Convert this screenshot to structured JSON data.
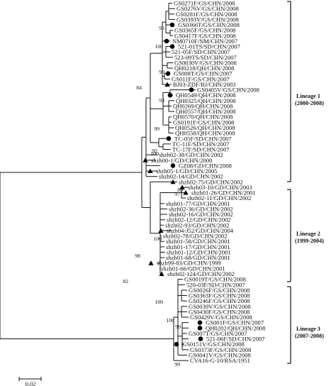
{
  "taxa": [
    {
      "label": "GS0271F/GS/CHN/2008",
      "marker": "none"
    },
    {
      "label": "GS0276V/GS/CHN/2008",
      "marker": "none"
    },
    {
      "label": "GS0281F/GS/CHN/2008",
      "marker": "none"
    },
    {
      "label": "GS0393V/GS/CHN/2008",
      "marker": "none"
    },
    {
      "label": "GS0366T/GS/CHN/2008",
      "marker": "circle"
    },
    {
      "label": "GS0365F/GS/CHN/2008",
      "marker": "none"
    },
    {
      "label": "GS0417F/GS/CHN/2008",
      "marker": "none"
    },
    {
      "label": "NM0710F/NM/CHN/2007",
      "marker": "circle"
    },
    {
      "label": "521-01TS/SD/CHN/2007",
      "marker": "circle"
    },
    {
      "label": "521-05F/SD/CHN/2007",
      "marker": "none"
    },
    {
      "label": "523-09TS/SD/CHN/2007",
      "marker": "none"
    },
    {
      "label": "GS0030V/GS/CHN/2008",
      "marker": "none"
    },
    {
      "label": "QH0218/QH/CHN/2008",
      "marker": "none"
    },
    {
      "label": "GS008T/GS/CHN/2007",
      "marker": "circle"
    },
    {
      "label": "GS011F/GS/CHN/2007",
      "marker": "none"
    },
    {
      "label": "BJ03-ZDF/BJ/CHN/2003",
      "marker": "triangle"
    },
    {
      "label": "GS0405V/GS/CHN/2008",
      "marker": "circle"
    },
    {
      "label": "QH0549/QH/CHN/2008",
      "marker": "circle"
    },
    {
      "label": "QH0325/QH/CHN/2008",
      "marker": "none"
    },
    {
      "label": "QH0269/QH/CHN/2008",
      "marker": "none"
    },
    {
      "label": "QH0557/QH/CHN/2008",
      "marker": "none"
    },
    {
      "label": "QH0570/QH/CHN/2008",
      "marker": "none"
    },
    {
      "label": "GS0191F/GS/CHN/2008",
      "marker": "none"
    },
    {
      "label": "QH0526/QH/CHN/2008",
      "marker": "none"
    },
    {
      "label": "QH0558/QH/CHN/2008",
      "marker": "none"
    },
    {
      "label": "TC-05F/SD/CHN/2007",
      "marker": "circle"
    },
    {
      "label": "TC-11F/SD/CHN/2007",
      "marker": "none"
    },
    {
      "label": "TC-17F/SD/CHN/2007",
      "marker": "none"
    },
    {
      "label": "shzh02-38/GD/CHN/2002",
      "marker": "none"
    },
    {
      "label": "shzh00-1/GD/CHN/2000",
      "marker": "triangle"
    },
    {
      "label": "GZ08/GD/CHN/2008",
      "marker": "circle"
    },
    {
      "label": "shzh05-1/GD/CHN/2005",
      "marker": "triangle"
    },
    {
      "label": "shzh02-14/GD/CHN/2002",
      "marker": "none"
    },
    {
      "label": "shzh02-75/GD/CHN/2002",
      "marker": "triangle"
    },
    {
      "label": "shzh03-10/GD/CHN/2003",
      "marker": "triangle"
    },
    {
      "label": "shzh01-26/GD/CHN/2001",
      "marker": "triangle"
    },
    {
      "label": "shzh02-11/GD/CHN/2002",
      "marker": "none"
    },
    {
      "label": "shzh01-77/GD/CHN/2001",
      "marker": "none"
    },
    {
      "label": "shzh02-36/GD/CHN/2002",
      "marker": "none"
    },
    {
      "label": "shzh02-16/GD/CHN/2002",
      "marker": "none"
    },
    {
      "label": "shzh02-12/GD/CHN/2002",
      "marker": "none"
    },
    {
      "label": "shzh02-93/GD/CHN/2002",
      "marker": "none"
    },
    {
      "label": "shzh04-J52/GD/CHN/2004",
      "marker": "triangle"
    },
    {
      "label": "shzh02-78/GD/CHN/2002",
      "marker": "none"
    },
    {
      "label": "shzh01-58/GD/CHN/2001",
      "marker": "none"
    },
    {
      "label": "shzh01-17/GD/CHN/2001",
      "marker": "none"
    },
    {
      "label": "shzh01-12/GD/CHN/2001",
      "marker": "none"
    },
    {
      "label": "shzh01-68/GD/CHN/2001",
      "marker": "none"
    },
    {
      "label": "shzh99-83/GD/CHN/1999",
      "marker": "triangle"
    },
    {
      "label": "shzh01-66/GD/CHN/2001",
      "marker": "none"
    },
    {
      "label": "shzh02-124/GD/CHN/2002",
      "marker": "triangle"
    },
    {
      "label": "GS0019T/GS/CHN/2008",
      "marker": "none"
    },
    {
      "label": "520-03F/SD/CHN/2007",
      "marker": "none"
    },
    {
      "label": "GS0026F/GS/CHN/2008",
      "marker": "none"
    },
    {
      "label": "GS0363F/GS/CHN/2008",
      "marker": "none"
    },
    {
      "label": "GS0246F/GS/CHN/2008",
      "marker": "none"
    },
    {
      "label": "GS0039V/GS/CHN/2008",
      "marker": "none"
    },
    {
      "label": "GS0430F/GS/CHN/2008",
      "marker": "none"
    },
    {
      "label": "GS0429V/GS/CHN/2008",
      "marker": "none"
    },
    {
      "label": "GS001F/GS/CHN/2007",
      "marker": "circle"
    },
    {
      "label": "QH0202/QH/CHN/2008",
      "marker": "circle"
    },
    {
      "label": "GS007T/GS/CHN/2007",
      "marker": "none"
    },
    {
      "label": "521-06F/SD/CHN/2007",
      "marker": "circle"
    },
    {
      "label": "GS0151V/GS/CHN/2008",
      "marker": "circle"
    },
    {
      "label": "GS0373F/GS/CHN/2008",
      "marker": "none"
    },
    {
      "label": "GS0041V/GS/CHN/2008",
      "marker": "none"
    },
    {
      "label": "CVA16-G-10/RSA/1951",
      "marker": "none"
    }
  ],
  "bootstrap": [
    "95",
    "100",
    "99",
    "84",
    "93",
    "99",
    "100",
    "92",
    "89",
    "97",
    "100",
    "98",
    "82",
    "100",
    "100",
    "99",
    "99"
  ],
  "lineages": [
    {
      "name": "Lineage 1",
      "period": "(2000-2008)"
    },
    {
      "name": "Lineage 2",
      "period": "(1999-2004)"
    },
    {
      "name": "Lineage 3",
      "period": "(2007-2008)"
    }
  ],
  "scale_bar": {
    "label": "0.02"
  },
  "colors": {
    "line": "#111111",
    "marker": "#000000",
    "background": "#ffffff"
  }
}
